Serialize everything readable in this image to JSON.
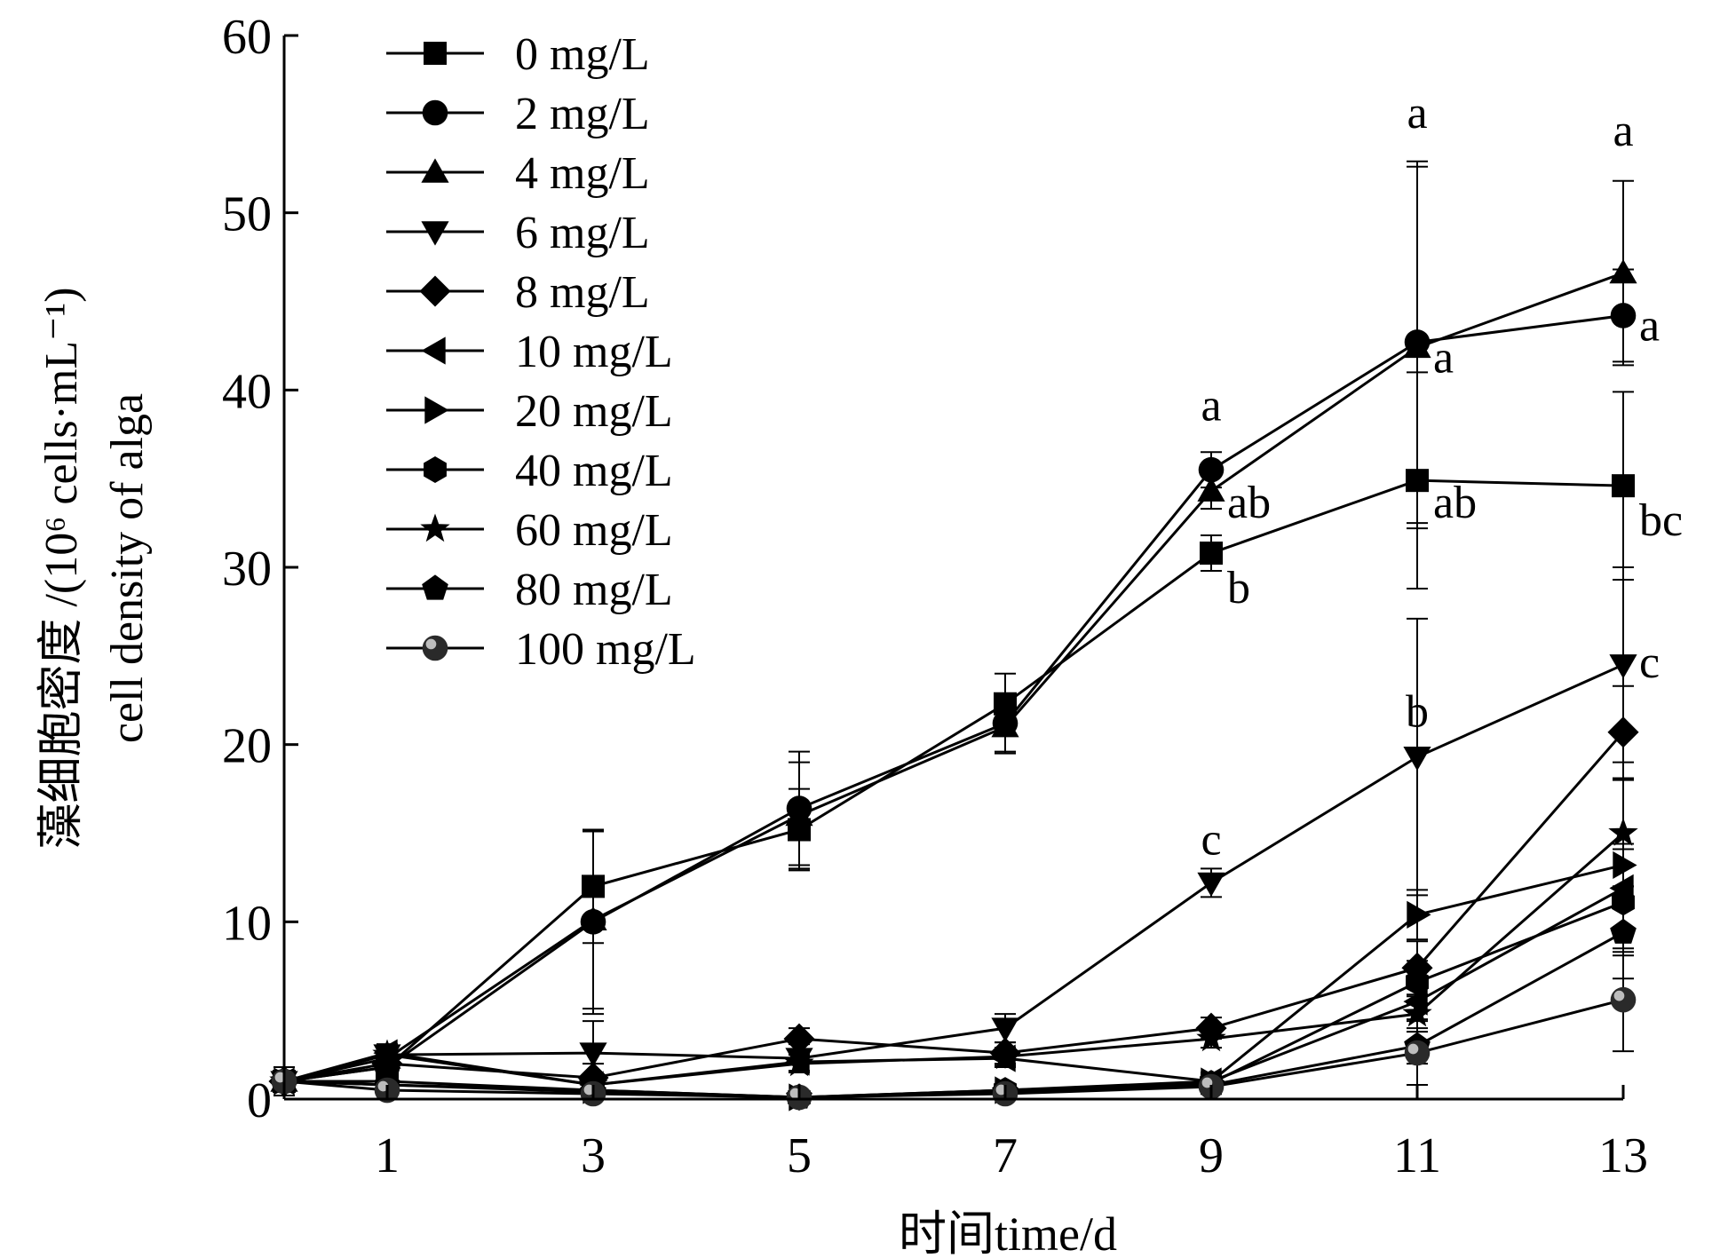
{
  "chart_data": {
    "type": "line",
    "xlabel": "时间time/d",
    "ylabel_line1": "藻细胞密度 /(10⁶ cells·mL⁻¹)",
    "ylabel_line2": "cell density of alga",
    "xlim": [
      0,
      13
    ],
    "ylim": [
      0,
      60
    ],
    "x_ticks": [
      1,
      3,
      5,
      7,
      9,
      11,
      13
    ],
    "y_ticks": [
      0,
      10,
      20,
      30,
      40,
      50,
      60
    ],
    "legend_position": "top-left",
    "grid": false,
    "x": [
      0,
      1,
      3,
      5,
      7,
      9,
      11,
      13
    ],
    "series": [
      {
        "name": "0 mg/L",
        "marker": "square",
        "values": [
          1.0,
          1.8,
          12.0,
          15.2,
          22.3,
          30.8,
          34.9,
          34.6
        ],
        "errors": [
          0.8,
          0.5,
          3.2,
          2.3,
          1.7,
          1.0,
          6.1,
          5.3
        ]
      },
      {
        "name": "2 mg/L",
        "marker": "circle",
        "values": [
          1.0,
          1.8,
          10.0,
          16.4,
          21.2,
          35.5,
          42.7,
          44.2
        ],
        "errors": [
          0.8,
          0.5,
          5.2,
          3.2,
          1.6,
          1.0,
          10.2,
          2.6
        ]
      },
      {
        "name": "4 mg/L",
        "marker": "triangle-up",
        "values": [
          1.0,
          2.3,
          10.1,
          16.0,
          21.0,
          34.3,
          42.4,
          46.6
        ],
        "errors": [
          0.8,
          0.5,
          5.0,
          3.0,
          1.5,
          1.0,
          10.2,
          5.2
        ]
      },
      {
        "name": "6 mg/L",
        "marker": "triangle-down",
        "values": [
          1.0,
          2.5,
          2.6,
          2.3,
          4.0,
          12.2,
          19.3,
          24.5
        ],
        "errors": [
          0.8,
          0.5,
          1.8,
          0.8,
          0.8,
          0.8,
          7.8,
          5.5
        ]
      },
      {
        "name": "8 mg/L",
        "marker": "diamond",
        "values": [
          1.0,
          2.0,
          1.2,
          3.4,
          2.6,
          4.0,
          7.4,
          20.7
        ],
        "errors": [
          0.8,
          0.5,
          0.8,
          0.6,
          0.6,
          0.6,
          1.5,
          2.6
        ]
      },
      {
        "name": "10 mg/L",
        "marker": "triangle-left",
        "values": [
          1.0,
          2.6,
          0.8,
          2.1,
          2.3,
          1.0,
          5.5,
          11.9
        ],
        "errors": [
          0.8,
          0.5,
          0.5,
          0.5,
          0.5,
          0.5,
          1.0,
          2.5
        ]
      },
      {
        "name": "20 mg/L",
        "marker": "triangle-right",
        "values": [
          1.0,
          1.0,
          0.5,
          0.1,
          0.5,
          1.0,
          10.4,
          13.2
        ],
        "errors": [
          0.8,
          0.3,
          0.3,
          0.2,
          0.3,
          0.4,
          1.4,
          4.9
        ]
      },
      {
        "name": "40 mg/L",
        "marker": "hexagon",
        "values": [
          1.0,
          0.8,
          0.5,
          0.1,
          0.5,
          0.9,
          6.6,
          11.1
        ],
        "errors": [
          0.8,
          0.3,
          0.3,
          0.2,
          0.3,
          0.4,
          1.2,
          3.0
        ]
      },
      {
        "name": "60 mg/L",
        "marker": "star",
        "values": [
          1.0,
          2.5,
          0.8,
          2.0,
          2.4,
          3.4,
          4.8,
          15.0
        ],
        "errors": [
          0.8,
          0.5,
          0.5,
          0.5,
          0.5,
          0.5,
          1.0,
          3.0
        ]
      },
      {
        "name": "80 mg/L",
        "marker": "pentagon",
        "values": [
          1.0,
          0.8,
          0.4,
          0.1,
          0.4,
          0.8,
          3.0,
          9.4
        ],
        "errors": [
          0.8,
          0.3,
          0.3,
          0.2,
          0.3,
          0.4,
          1.0,
          2.6
        ]
      },
      {
        "name": "100 mg/L",
        "marker": "sphere",
        "values": [
          1.0,
          0.5,
          0.3,
          0.1,
          0.3,
          0.7,
          2.6,
          5.6
        ],
        "errors": [
          0.8,
          0.3,
          0.3,
          0.2,
          0.3,
          0.4,
          1.8,
          2.9
        ]
      }
    ],
    "annotations": [
      {
        "text": "a",
        "x": 9,
        "y": 38.3,
        "anchor": "middle"
      },
      {
        "text": "ab",
        "x": 9,
        "y": 32.8,
        "anchor": "start"
      },
      {
        "text": "b",
        "x": 9,
        "y": 28.0,
        "anchor": "start"
      },
      {
        "text": "c",
        "x": 9,
        "y": 13.8,
        "anchor": "middle"
      },
      {
        "text": "a",
        "x": 11,
        "y": 54.8,
        "anchor": "middle"
      },
      {
        "text": "a",
        "x": 11,
        "y": 41.0,
        "anchor": "start"
      },
      {
        "text": "ab",
        "x": 11,
        "y": 32.8,
        "anchor": "start"
      },
      {
        "text": "b",
        "x": 11,
        "y": 21.0,
        "anchor": "middle"
      },
      {
        "text": "a",
        "x": 13,
        "y": 53.8,
        "anchor": "middle"
      },
      {
        "text": "a",
        "x": 13,
        "y": 42.8,
        "anchor": "start"
      },
      {
        "text": "bc",
        "x": 13,
        "y": 31.8,
        "anchor": "start"
      },
      {
        "text": "c",
        "x": 13,
        "y": 23.8,
        "anchor": "start"
      }
    ]
  }
}
